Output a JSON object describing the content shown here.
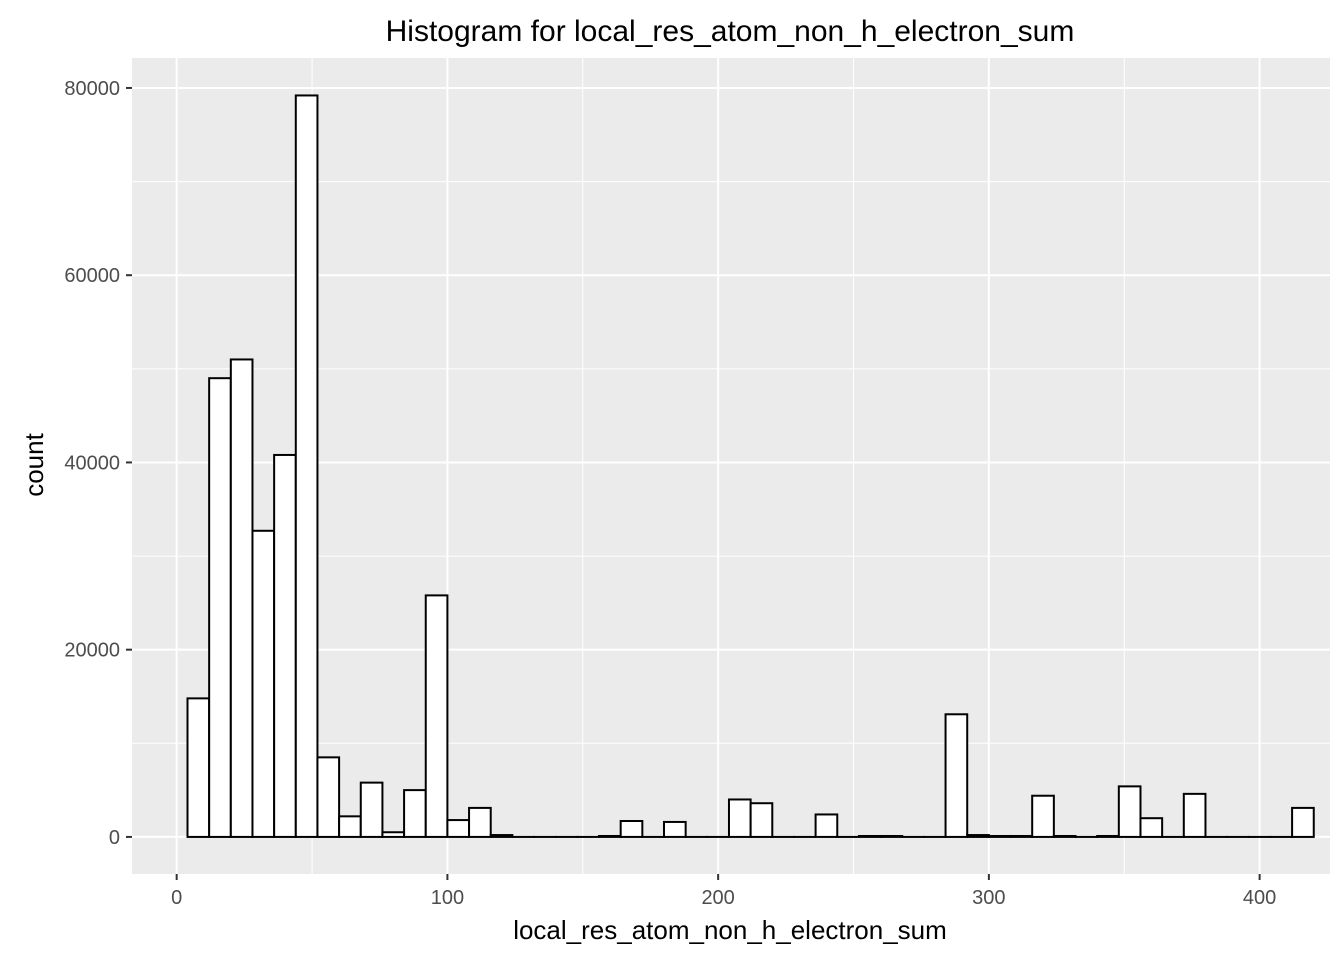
{
  "chart_data": {
    "type": "bar",
    "title": "Histogram for local_res_atom_non_h_electron_sum",
    "xlabel": "local_res_atom_non_h_electron_sum",
    "ylabel": "count",
    "xlim": [
      -16.5,
      426
    ],
    "ylim": [
      -3960,
      83200
    ],
    "x_ticks": [
      0,
      100,
      200,
      300,
      400
    ],
    "x_tick_labels": [
      "0",
      "100",
      "200",
      "300",
      "400"
    ],
    "y_ticks": [
      0,
      20000,
      40000,
      60000,
      80000
    ],
    "y_tick_labels": [
      "0",
      "20000",
      "40000",
      "60000",
      "80000"
    ],
    "grid": true,
    "background": "#ebebeb",
    "bar_fill": "#ffffff",
    "bar_stroke": "#000000",
    "bins": {
      "start": 4,
      "width": 8,
      "counts": [
        14800,
        49000,
        51000,
        32700,
        40800,
        79200,
        8500,
        2200,
        5800,
        500,
        5000,
        25800,
        1800,
        3100,
        200,
        0,
        0,
        0,
        0,
        100,
        1700,
        0,
        1600,
        0,
        0,
        4000,
        3600,
        0,
        0,
        2400,
        0,
        100,
        100,
        0,
        0,
        13100,
        200,
        100,
        100,
        4400,
        100,
        0,
        100,
        5400,
        2000,
        0,
        4600,
        0,
        0,
        0,
        0,
        3100
      ]
    }
  }
}
